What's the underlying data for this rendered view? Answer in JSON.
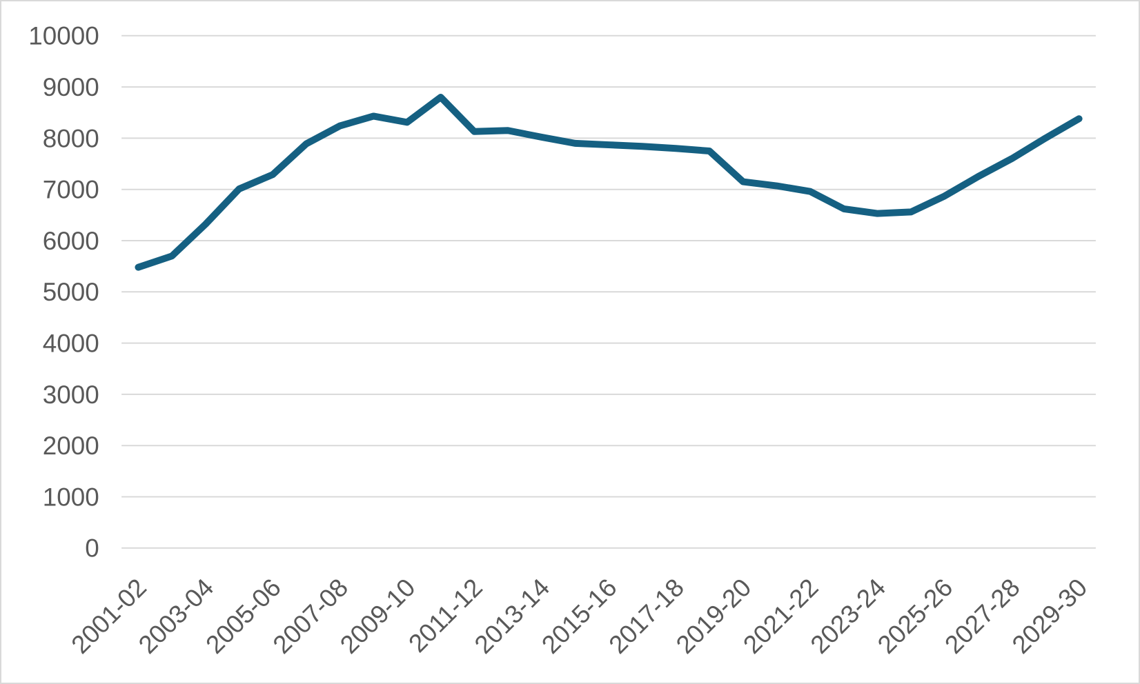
{
  "chart_data": {
    "type": "line",
    "title": "",
    "xlabel": "",
    "ylabel": "",
    "legend": "none",
    "grid": "horizontal",
    "categories": [
      "2001-02",
      "2002-03",
      "2003-04",
      "2004-05",
      "2005-06",
      "2006-07",
      "2007-08",
      "2008-09",
      "2009-10",
      "2010-11",
      "2011-12",
      "2012-13",
      "2013-14",
      "2014-15",
      "2015-16",
      "2016-17",
      "2017-18",
      "2018-19",
      "2019-20",
      "2020-21",
      "2021-22",
      "2022-23",
      "2023-24",
      "2024-25",
      "2025-26",
      "2026-27",
      "2027-28",
      "2028-29",
      "2029-30"
    ],
    "values": [
      5480,
      5700,
      6320,
      7010,
      7290,
      7890,
      8240,
      8430,
      8310,
      8800,
      8130,
      8150,
      8020,
      7900,
      7870,
      7840,
      7800,
      7750,
      7150,
      7070,
      6960,
      6620,
      6530,
      6560,
      6870,
      7250,
      7600,
      8000,
      8380
    ],
    "ylim": [
      0,
      10000
    ],
    "ytick_step": 1000,
    "y_tick_labels": [
      "0",
      "1000",
      "2000",
      "3000",
      "4000",
      "5000",
      "6000",
      "7000",
      "8000",
      "9000",
      "10000"
    ],
    "x_tick_every": 2,
    "x_tick_labels": [
      "2001-02",
      "2003-04",
      "2005-06",
      "2007-08",
      "2009-10",
      "2011-12",
      "2013-14",
      "2015-16",
      "2017-18",
      "2019-20",
      "2021-22",
      "2023-24",
      "2025-26",
      "2027-28",
      "2029-30"
    ],
    "x_tick_rotation_deg": -45,
    "colors": {
      "line": "#156082",
      "gridline": "#D9D9D9",
      "tick_label": "#595959",
      "chart_border": "#D9D9D9",
      "background": "#FFFFFF"
    }
  }
}
